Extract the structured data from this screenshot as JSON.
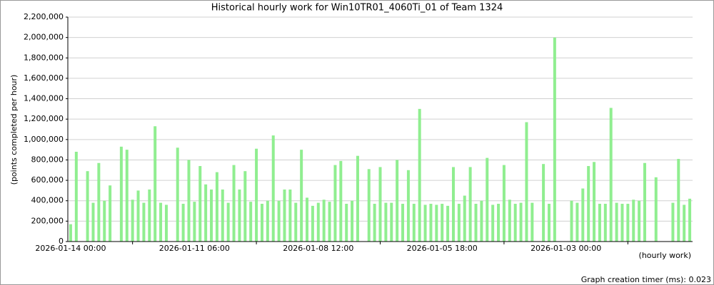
{
  "chart_data": {
    "type": "bar",
    "title": "Historical hourly work for Win10TR01_4060Ti_01 of Team 1324",
    "y_label": "(points completed per hour)",
    "x_label": "(hourly work)",
    "footer": "Graph creation timer (ms): 0.023",
    "color": "#90ee90",
    "grid": true,
    "categories": [
      "2026-01-14 00:00",
      null,
      null,
      null,
      null,
      null,
      null,
      null,
      null,
      null,
      null,
      null,
      null,
      null,
      null,
      null,
      null,
      null,
      null,
      null,
      null,
      null,
      "2026-01-11 06:00",
      null,
      null,
      null,
      null,
      null,
      null,
      null,
      null,
      null,
      null,
      null,
      null,
      null,
      null,
      null,
      null,
      null,
      null,
      null,
      null,
      null,
      "2026-01-08 12:00",
      null,
      null,
      null,
      null,
      null,
      null,
      null,
      null,
      null,
      null,
      null,
      null,
      null,
      null,
      null,
      null,
      null,
      null,
      null,
      null,
      null,
      "2026-01-05 18:00",
      null,
      null,
      null,
      null,
      null,
      null,
      null,
      null,
      null,
      null,
      null,
      null,
      null,
      null,
      null,
      null,
      null,
      null,
      null,
      null,
      null,
      "2026-01-03 00:00",
      null,
      null,
      null,
      null,
      null,
      null,
      null,
      null,
      null,
      null,
      null,
      null,
      null,
      null,
      null,
      null,
      null,
      null,
      null,
      null,
      null,
      null
    ],
    "values": [
      170000,
      880000,
      null,
      690000,
      380000,
      770000,
      400000,
      550000,
      null,
      930000,
      900000,
      410000,
      500000,
      380000,
      510000,
      1130000,
      380000,
      360000,
      null,
      920000,
      370000,
      800000,
      390000,
      740000,
      560000,
      510000,
      680000,
      510000,
      380000,
      750000,
      510000,
      690000,
      390000,
      910000,
      370000,
      400000,
      1040000,
      400000,
      510000,
      510000,
      380000,
      900000,
      430000,
      350000,
      380000,
      410000,
      390000,
      750000,
      790000,
      370000,
      400000,
      840000,
      null,
      710000,
      370000,
      730000,
      380000,
      380000,
      800000,
      370000,
      700000,
      370000,
      1300000,
      360000,
      370000,
      360000,
      370000,
      350000,
      730000,
      370000,
      450000,
      730000,
      370000,
      400000,
      820000,
      360000,
      370000,
      750000,
      410000,
      370000,
      380000,
      1170000,
      380000,
      null,
      760000,
      370000,
      2000000,
      null,
      null,
      400000,
      380000,
      520000,
      740000,
      780000,
      370000,
      370000,
      1310000,
      380000,
      370000,
      370000,
      410000,
      400000,
      770000,
      null,
      630000,
      null,
      null,
      380000,
      810000,
      360000,
      420000
    ],
    "ylim": [
      0,
      2200000
    ],
    "yticks": [
      0,
      {
        "value": 200000,
        "label": "200,000"
      },
      {
        "value": 400000,
        "label": "400,000"
      },
      {
        "value": 600000,
        "label": "600,000"
      },
      {
        "value": 800000,
        "label": "800,000"
      },
      {
        "value": 1000000,
        "label": "1,000,000"
      },
      {
        "value": 1200000,
        "label": "1,200,000"
      },
      {
        "value": 1400000,
        "label": "1,400,000"
      },
      {
        "value": 1600000,
        "label": "1,600,000"
      },
      {
        "value": 1800000,
        "label": "1,800,000"
      },
      {
        "value": 2000000,
        "label": "2,000,000"
      },
      {
        "value": 2200000,
        "label": "2,200,000"
      }
    ]
  }
}
